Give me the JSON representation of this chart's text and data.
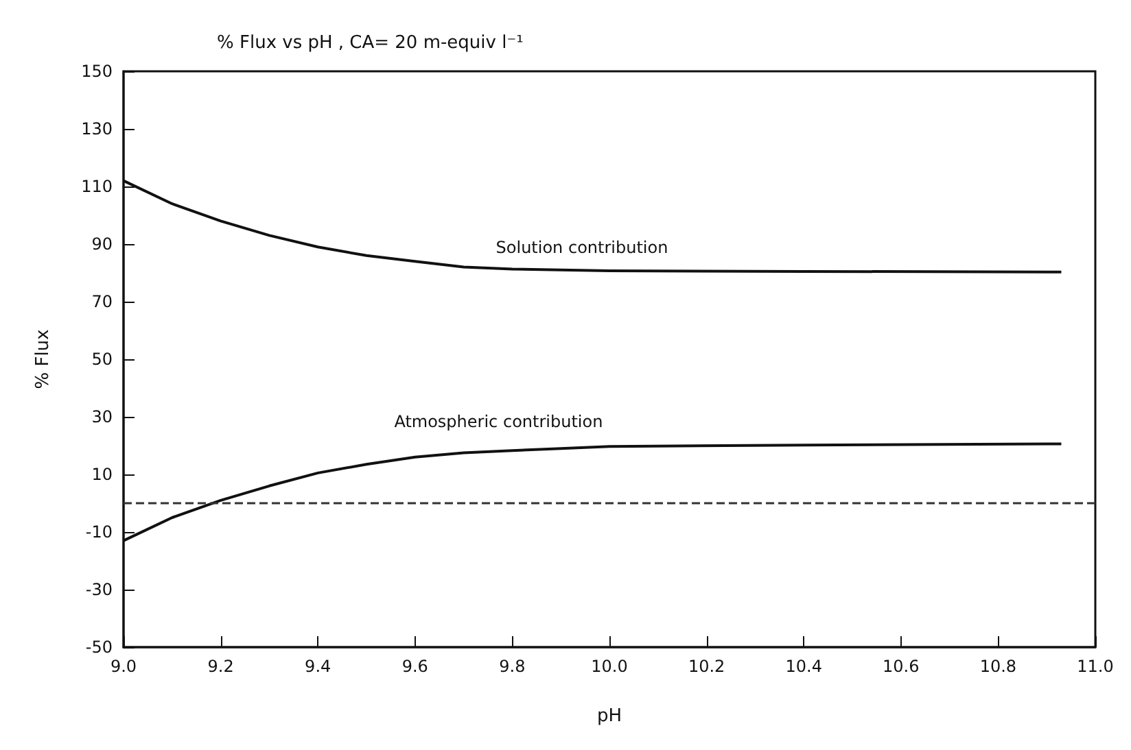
{
  "chart_data": {
    "type": "line",
    "title": "% Flux vs pH , CA= 20 m-equiv l⁻¹",
    "xlabel": "pH",
    "ylabel": "% Flux",
    "x": [
      9.0,
      9.1,
      9.2,
      9.3,
      9.4,
      9.5,
      9.6,
      9.7,
      9.8,
      9.9,
      10.0,
      10.4,
      10.93
    ],
    "series": [
      {
        "name": "Solution contribution",
        "color": "#111111",
        "values": [
          112,
          104,
          98,
          93,
          89,
          86,
          84,
          82,
          81.3,
          81,
          80.7,
          80.5,
          80.3
        ]
      },
      {
        "name": "Atmospheric contribution",
        "color": "#111111",
        "values": [
          -13,
          -5,
          1,
          6,
          10.5,
          13.5,
          16,
          17.5,
          18.3,
          19,
          19.7,
          20.2,
          20.6
        ]
      }
    ],
    "xlim": [
      9.0,
      11.0
    ],
    "xticks": [
      {
        "value": 9.0,
        "label": "9.0"
      },
      {
        "value": 9.2,
        "label": "9.2"
      },
      {
        "value": 9.4,
        "label": "9.4"
      },
      {
        "value": 9.6,
        "label": "9.6"
      },
      {
        "value": 9.8,
        "label": "9.8"
      },
      {
        "value": 10.0,
        "label": "10.0"
      },
      {
        "value": 10.2,
        "label": "10.2"
      },
      {
        "value": 10.4,
        "label": "10.4"
      },
      {
        "value": 10.6,
        "label": "10.6"
      },
      {
        "value": 10.8,
        "label": "10.8"
      },
      {
        "value": 11.0,
        "label": "11.0"
      }
    ],
    "ylim": [
      -50,
      150
    ],
    "yticks": [
      -50,
      -30,
      -10,
      10,
      30,
      50,
      70,
      90,
      110,
      130,
      150
    ],
    "ref_lines": [
      {
        "axis": "y",
        "value": 0,
        "line_style": "dashed",
        "color": "#333333"
      }
    ],
    "grid": false,
    "legend": false,
    "marker": "none",
    "line_style": "solid"
  }
}
